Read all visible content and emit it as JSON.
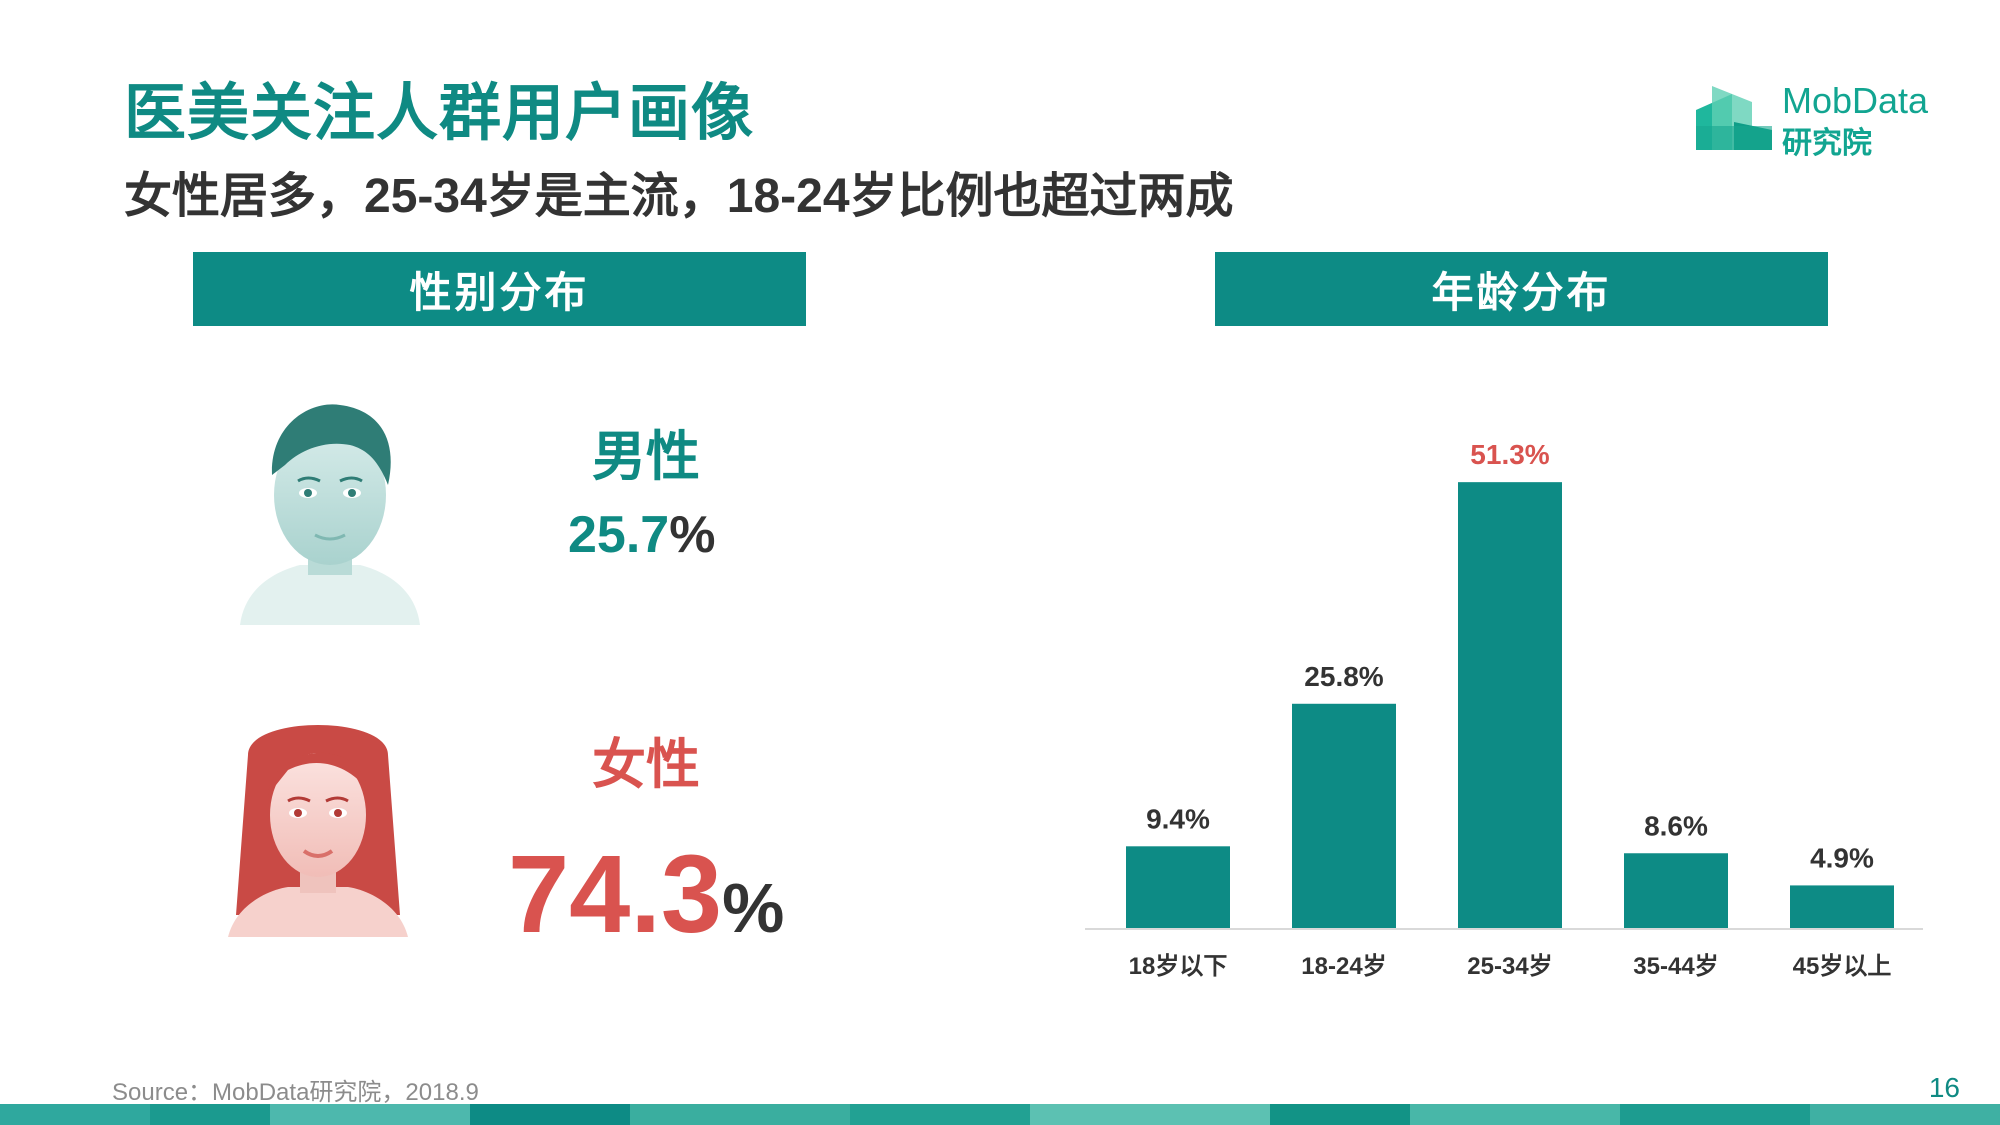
{
  "header": {
    "title": "医美关注人群用户画像",
    "subtitle": "女性居多，25-34岁是主流，18-24岁比例也超过两成"
  },
  "logo": {
    "line1": "MobData",
    "line2": "研究院",
    "icon": "building-blocks-icon"
  },
  "gender_section": {
    "heading": "性别分布",
    "male": {
      "label": "男性",
      "value": "25.7",
      "unit": "%",
      "icon": "male-avatar-icon"
    },
    "female": {
      "label": "女性",
      "value": "74.3",
      "unit": "%",
      "icon": "female-avatar-icon"
    }
  },
  "age_section": {
    "heading": "年龄分布"
  },
  "chart_data": {
    "type": "bar",
    "categories": [
      "18岁以下",
      "18-24岁",
      "25-34岁",
      "35-44岁",
      "45岁以上"
    ],
    "values": [
      9.4,
      25.8,
      51.3,
      8.6,
      4.9
    ],
    "data_labels": [
      "9.4%",
      "25.8%",
      "51.3%",
      "8.6%",
      "4.9%"
    ],
    "highlight_index": 2,
    "ylim": [
      0,
      55
    ],
    "grid": false,
    "colors": {
      "bar": "#0d8b85",
      "label": "#333333",
      "highlight_label": "#d9534f",
      "axis": "#d9d9d9"
    }
  },
  "footer": {
    "source": "Source：MobData研究院，2018.9",
    "page_number": "16"
  },
  "colors": {
    "primary": "#0d8b85",
    "female": "#d9534f",
    "text_dark": "#333333"
  }
}
